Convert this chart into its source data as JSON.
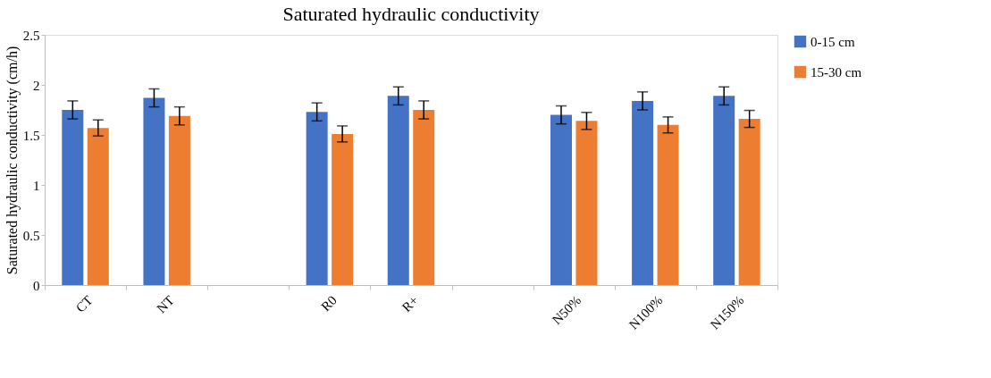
{
  "chart_data": {
    "type": "bar",
    "title": "Saturated hydraulic conductivity",
    "ylabel": "Saturated hydraulic conductivity (cm/h)",
    "categories": [
      "CT",
      "NT",
      null,
      "R0",
      "R+",
      null,
      "N50%",
      "N100%",
      "N150%"
    ],
    "series": [
      {
        "name": "0-15 cm",
        "color": "#4472c4",
        "values": [
          1.75,
          1.87,
          null,
          1.73,
          1.89,
          null,
          1.7,
          1.84,
          1.89
        ],
        "errors": [
          0.09,
          0.09,
          null,
          0.09,
          0.09,
          null,
          0.09,
          0.09,
          0.09
        ]
      },
      {
        "name": "15-30 cm",
        "color": "#ed7d31",
        "values": [
          1.57,
          1.69,
          null,
          1.51,
          1.75,
          null,
          1.64,
          1.6,
          1.66
        ],
        "errors": [
          0.08,
          0.09,
          null,
          0.08,
          0.09,
          null,
          0.085,
          0.08,
          0.085
        ]
      }
    ],
    "ylim": [
      0,
      2.5
    ],
    "yticks": [
      0,
      0.5,
      1,
      1.5,
      2,
      2.5
    ],
    "grid": false,
    "legend": "right"
  }
}
